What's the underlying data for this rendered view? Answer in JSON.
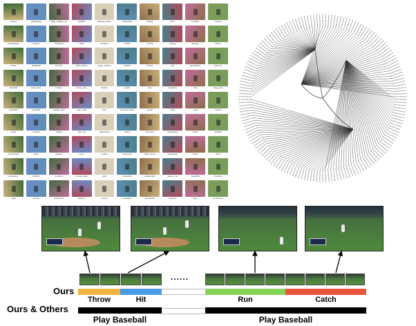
{
  "thumbnail_grid": {
    "captions": [
      "archery",
      "applauding",
      "baby_waking_up",
      "backflip",
      "balance_beam",
      "basketball",
      "batting",
      "bmx",
      "bowling",
      "boxing",
      "breaststroke",
      "bungee",
      "cartwheel",
      "catch",
      "climbing",
      "cricket",
      "curling",
      "cycling",
      "dancing",
      "discus",
      "diving",
      "dodgeball",
      "fencing",
      "field_hockey",
      "figure_skating",
      "football",
      "frisbee",
      "golf",
      "gymnastics",
      "hammer",
      "handball",
      "high_jump",
      "hockey",
      "horse_race",
      "hurdles",
      "javelin",
      "judo",
      "kayaking",
      "kick",
      "long_jump",
      "marathon",
      "paintball",
      "parallel_bars",
      "pole_vault",
      "polo",
      "pommel_horse",
      "punch",
      "relay",
      "rings",
      "rowing",
      "rugby",
      "running",
      "sailing",
      "shot_put",
      "skateboard",
      "skiing",
      "ski_jump",
      "snowboard",
      "soccer",
      "softball",
      "springboard",
      "sprint",
      "squash",
      "sumo",
      "surfing",
      "swimming",
      "table_tennis",
      "taekwondo",
      "tennis",
      "throw",
      "trampoline",
      "triathlon",
      "tumbling",
      "uneven_bars",
      "vault",
      "volleyball",
      "wakeboard",
      "water_polo",
      "weightlift",
      "wrestling",
      "yoga",
      "zumba",
      "badminton",
      "biathlon",
      "canoe",
      "decathlon",
      "equestrian",
      "kitesurf",
      "luge",
      "motocross"
    ],
    "colors": [
      "#c9b07a",
      "#6a8cc7",
      "#3e6b3a",
      "#b04a5a",
      "#d9cfb8",
      "#5e8fb5",
      "#8d6e4c",
      "#4a7f8a",
      "#c06d9c",
      "#7a9d5c"
    ]
  },
  "timeline": {
    "ours_label": "Ours",
    "ours_others_label": "Ours & Others",
    "ellipsis": "......",
    "segments": [
      {
        "label": "Throw",
        "color": "#f0b440"
      },
      {
        "label": "Hit",
        "color": "#4a9be6"
      },
      {
        "label": "",
        "color": "#ffffff"
      },
      {
        "label": "Run",
        "color": "#86d35a"
      },
      {
        "label": "Catch",
        "color": "#e8553c"
      }
    ],
    "coarse_segments": [
      {
        "label": "Play Baseball",
        "color": "#000000"
      },
      {
        "label": "",
        "color": "#ffffff"
      },
      {
        "label": "Play Baseball",
        "color": "#000000"
      }
    ]
  }
}
